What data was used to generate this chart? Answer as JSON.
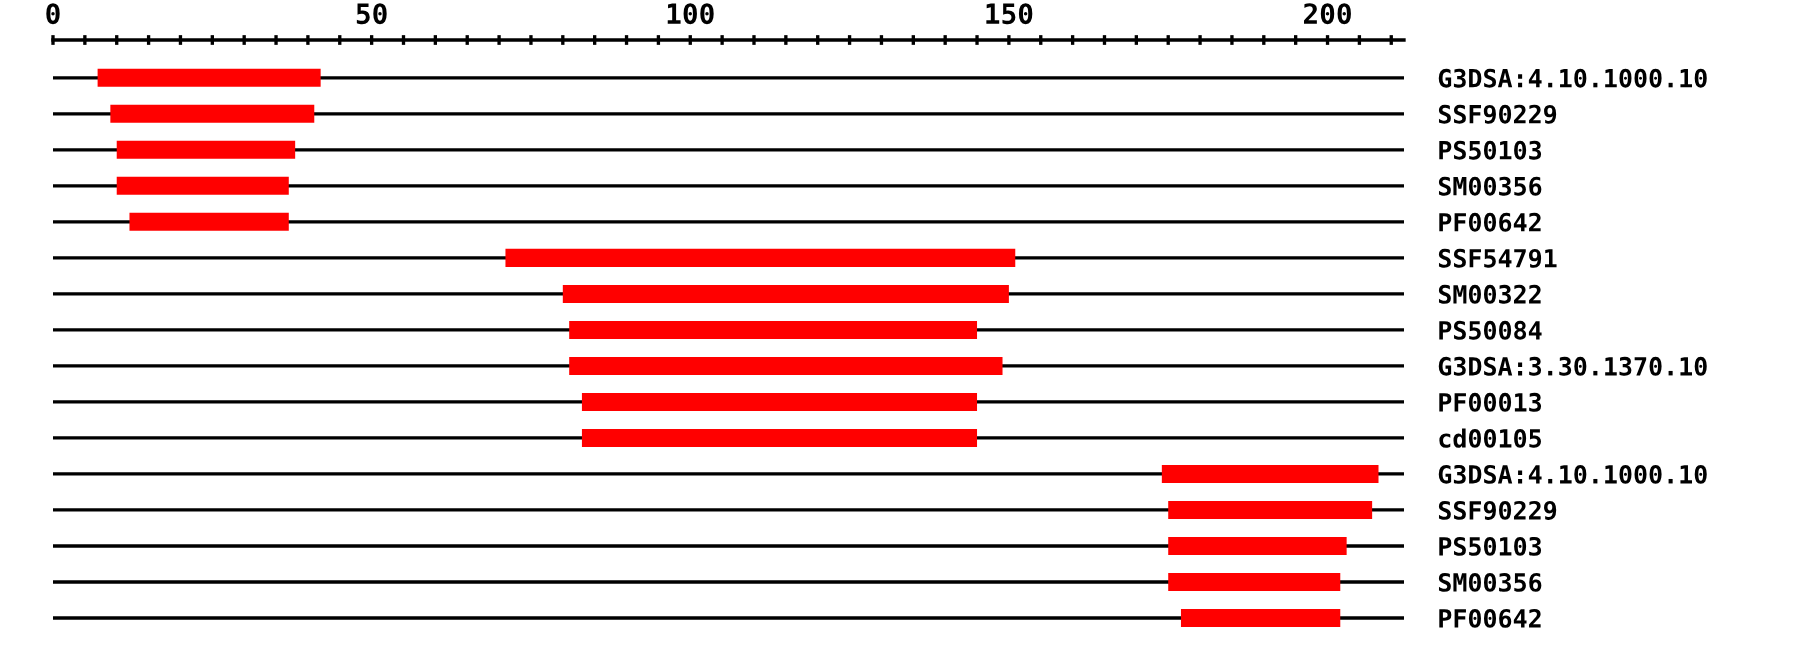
{
  "chart_data": {
    "type": "bar",
    "orientation": "horizontal",
    "categories": [
      "G3DSA:4.10.1000.10",
      "SSF90229",
      "PS50103",
      "SM00356",
      "PF00642",
      "SSF54791",
      "SM00322",
      "PS50084",
      "G3DSA:3.30.1370.10",
      "PF00013",
      "cd00105",
      "G3DSA:4.10.1000.10",
      "SSF90229",
      "PS50103",
      "SM00356",
      "PF00642"
    ],
    "base": [
      7,
      9,
      10,
      10,
      12,
      71,
      80,
      81,
      81,
      83,
      83,
      174,
      175,
      175,
      175,
      177
    ],
    "values": [
      35,
      32,
      28,
      27,
      25,
      80,
      70,
      64,
      68,
      62,
      62,
      34,
      32,
      28,
      27,
      25
    ],
    "color": "#ff0000",
    "xlim": [
      0,
      212
    ],
    "xticks": [
      0,
      {
        "value": 5,
        "label": null
      },
      {
        "value": 10,
        "label": null
      },
      {
        "value": 15,
        "label": null
      },
      {
        "value": 20,
        "label": null
      },
      {
        "value": 25,
        "label": null
      },
      {
        "value": 30,
        "label": null
      },
      {
        "value": 35,
        "label": null
      },
      {
        "value": 40,
        "label": null
      },
      {
        "value": 45,
        "label": null
      },
      50,
      {
        "value": 55,
        "label": null
      },
      {
        "value": 60,
        "label": null
      },
      {
        "value": 65,
        "label": null
      },
      {
        "value": 70,
        "label": null
      },
      {
        "value": 75,
        "label": null
      },
      {
        "value": 80,
        "label": null
      },
      {
        "value": 85,
        "label": null
      },
      {
        "value": 90,
        "label": null
      },
      {
        "value": 95,
        "label": null
      },
      100,
      {
        "value": 105,
        "label": null
      },
      {
        "value": 110,
        "label": null
      },
      {
        "value": 115,
        "label": null
      },
      {
        "value": 120,
        "label": null
      },
      {
        "value": 125,
        "label": null
      },
      {
        "value": 130,
        "label": null
      },
      {
        "value": 135,
        "label": null
      },
      {
        "value": 140,
        "label": null
      },
      {
        "value": 145,
        "label": null
      },
      150,
      {
        "value": 155,
        "label": null
      },
      {
        "value": 160,
        "label": null
      },
      {
        "value": 165,
        "label": null
      },
      {
        "value": 170,
        "label": null
      },
      {
        "value": 175,
        "label": null
      },
      {
        "value": 180,
        "label": null
      },
      {
        "value": 185,
        "label": null
      },
      {
        "value": 190,
        "label": null
      },
      {
        "value": 195,
        "label": null
      },
      200,
      {
        "value": 205,
        "label": null
      },
      {
        "value": 210,
        "label": null
      }
    ],
    "grid": "y"
  }
}
